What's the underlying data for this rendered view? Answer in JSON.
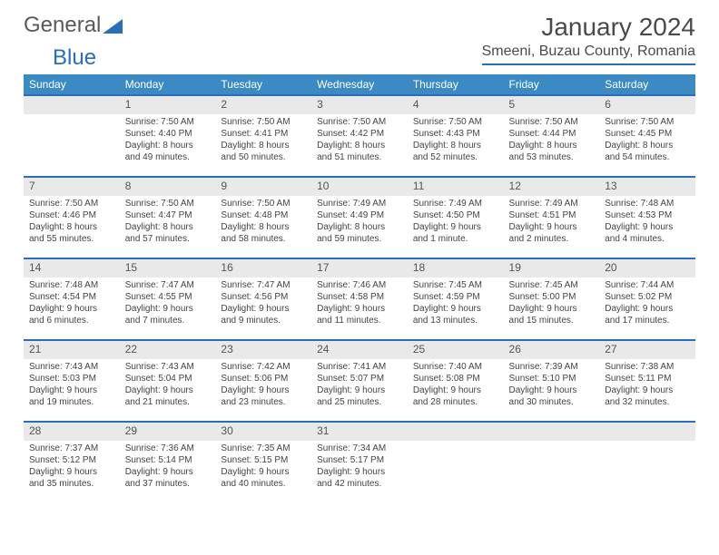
{
  "logo": {
    "text1": "General",
    "text2": "Blue"
  },
  "header": {
    "month_title": "January 2024",
    "location": "Smeeni, Buzau County, Romania"
  },
  "colors": {
    "header_bg": "#3b8ac4",
    "rule": "#2a6db8",
    "band": "#e9e9e9",
    "text": "#444444"
  },
  "weekdays": [
    "Sunday",
    "Monday",
    "Tuesday",
    "Wednesday",
    "Thursday",
    "Friday",
    "Saturday"
  ],
  "weeks": [
    [
      null,
      {
        "n": "1",
        "sr": "Sunrise: 7:50 AM",
        "ss": "Sunset: 4:40 PM",
        "dl": "Daylight: 8 hours and 49 minutes."
      },
      {
        "n": "2",
        "sr": "Sunrise: 7:50 AM",
        "ss": "Sunset: 4:41 PM",
        "dl": "Daylight: 8 hours and 50 minutes."
      },
      {
        "n": "3",
        "sr": "Sunrise: 7:50 AM",
        "ss": "Sunset: 4:42 PM",
        "dl": "Daylight: 8 hours and 51 minutes."
      },
      {
        "n": "4",
        "sr": "Sunrise: 7:50 AM",
        "ss": "Sunset: 4:43 PM",
        "dl": "Daylight: 8 hours and 52 minutes."
      },
      {
        "n": "5",
        "sr": "Sunrise: 7:50 AM",
        "ss": "Sunset: 4:44 PM",
        "dl": "Daylight: 8 hours and 53 minutes."
      },
      {
        "n": "6",
        "sr": "Sunrise: 7:50 AM",
        "ss": "Sunset: 4:45 PM",
        "dl": "Daylight: 8 hours and 54 minutes."
      }
    ],
    [
      {
        "n": "7",
        "sr": "Sunrise: 7:50 AM",
        "ss": "Sunset: 4:46 PM",
        "dl": "Daylight: 8 hours and 55 minutes."
      },
      {
        "n": "8",
        "sr": "Sunrise: 7:50 AM",
        "ss": "Sunset: 4:47 PM",
        "dl": "Daylight: 8 hours and 57 minutes."
      },
      {
        "n": "9",
        "sr": "Sunrise: 7:50 AM",
        "ss": "Sunset: 4:48 PM",
        "dl": "Daylight: 8 hours and 58 minutes."
      },
      {
        "n": "10",
        "sr": "Sunrise: 7:49 AM",
        "ss": "Sunset: 4:49 PM",
        "dl": "Daylight: 8 hours and 59 minutes."
      },
      {
        "n": "11",
        "sr": "Sunrise: 7:49 AM",
        "ss": "Sunset: 4:50 PM",
        "dl": "Daylight: 9 hours and 1 minute."
      },
      {
        "n": "12",
        "sr": "Sunrise: 7:49 AM",
        "ss": "Sunset: 4:51 PM",
        "dl": "Daylight: 9 hours and 2 minutes."
      },
      {
        "n": "13",
        "sr": "Sunrise: 7:48 AM",
        "ss": "Sunset: 4:53 PM",
        "dl": "Daylight: 9 hours and 4 minutes."
      }
    ],
    [
      {
        "n": "14",
        "sr": "Sunrise: 7:48 AM",
        "ss": "Sunset: 4:54 PM",
        "dl": "Daylight: 9 hours and 6 minutes."
      },
      {
        "n": "15",
        "sr": "Sunrise: 7:47 AM",
        "ss": "Sunset: 4:55 PM",
        "dl": "Daylight: 9 hours and 7 minutes."
      },
      {
        "n": "16",
        "sr": "Sunrise: 7:47 AM",
        "ss": "Sunset: 4:56 PM",
        "dl": "Daylight: 9 hours and 9 minutes."
      },
      {
        "n": "17",
        "sr": "Sunrise: 7:46 AM",
        "ss": "Sunset: 4:58 PM",
        "dl": "Daylight: 9 hours and 11 minutes."
      },
      {
        "n": "18",
        "sr": "Sunrise: 7:45 AM",
        "ss": "Sunset: 4:59 PM",
        "dl": "Daylight: 9 hours and 13 minutes."
      },
      {
        "n": "19",
        "sr": "Sunrise: 7:45 AM",
        "ss": "Sunset: 5:00 PM",
        "dl": "Daylight: 9 hours and 15 minutes."
      },
      {
        "n": "20",
        "sr": "Sunrise: 7:44 AM",
        "ss": "Sunset: 5:02 PM",
        "dl": "Daylight: 9 hours and 17 minutes."
      }
    ],
    [
      {
        "n": "21",
        "sr": "Sunrise: 7:43 AM",
        "ss": "Sunset: 5:03 PM",
        "dl": "Daylight: 9 hours and 19 minutes."
      },
      {
        "n": "22",
        "sr": "Sunrise: 7:43 AM",
        "ss": "Sunset: 5:04 PM",
        "dl": "Daylight: 9 hours and 21 minutes."
      },
      {
        "n": "23",
        "sr": "Sunrise: 7:42 AM",
        "ss": "Sunset: 5:06 PM",
        "dl": "Daylight: 9 hours and 23 minutes."
      },
      {
        "n": "24",
        "sr": "Sunrise: 7:41 AM",
        "ss": "Sunset: 5:07 PM",
        "dl": "Daylight: 9 hours and 25 minutes."
      },
      {
        "n": "25",
        "sr": "Sunrise: 7:40 AM",
        "ss": "Sunset: 5:08 PM",
        "dl": "Daylight: 9 hours and 28 minutes."
      },
      {
        "n": "26",
        "sr": "Sunrise: 7:39 AM",
        "ss": "Sunset: 5:10 PM",
        "dl": "Daylight: 9 hours and 30 minutes."
      },
      {
        "n": "27",
        "sr": "Sunrise: 7:38 AM",
        "ss": "Sunset: 5:11 PM",
        "dl": "Daylight: 9 hours and 32 minutes."
      }
    ],
    [
      {
        "n": "28",
        "sr": "Sunrise: 7:37 AM",
        "ss": "Sunset: 5:12 PM",
        "dl": "Daylight: 9 hours and 35 minutes."
      },
      {
        "n": "29",
        "sr": "Sunrise: 7:36 AM",
        "ss": "Sunset: 5:14 PM",
        "dl": "Daylight: 9 hours and 37 minutes."
      },
      {
        "n": "30",
        "sr": "Sunrise: 7:35 AM",
        "ss": "Sunset: 5:15 PM",
        "dl": "Daylight: 9 hours and 40 minutes."
      },
      {
        "n": "31",
        "sr": "Sunrise: 7:34 AM",
        "ss": "Sunset: 5:17 PM",
        "dl": "Daylight: 9 hours and 42 minutes."
      },
      null,
      null,
      null
    ]
  ]
}
